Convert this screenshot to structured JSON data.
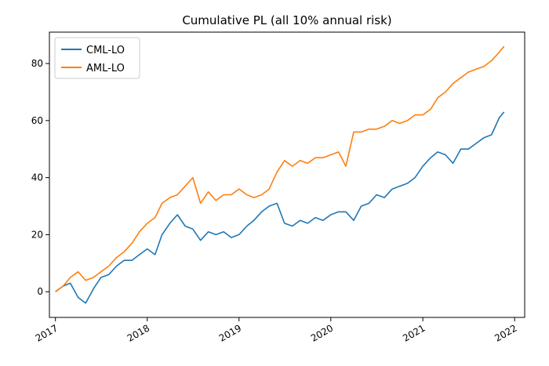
{
  "chart_data": {
    "type": "line",
    "title": "Cumulative PL (all 10% annual risk)",
    "xlabel": "",
    "ylabel": "",
    "x_ticks": [
      "2017",
      "2018",
      "2019",
      "2020",
      "2021",
      "2022"
    ],
    "y_ticks": [
      0,
      20,
      40,
      60,
      80
    ],
    "xlim": [
      "2016-12-08",
      "2022-02-10"
    ],
    "ylim": [
      -9,
      91
    ],
    "legend_position": "top-left",
    "grid": false,
    "x": [
      "2017-01-01",
      "2017-02-01",
      "2017-03-01",
      "2017-04-01",
      "2017-05-01",
      "2017-06-01",
      "2017-07-01",
      "2017-08-01",
      "2017-09-01",
      "2017-10-01",
      "2017-11-01",
      "2017-12-01",
      "2018-01-01",
      "2018-02-01",
      "2018-03-01",
      "2018-04-01",
      "2018-05-01",
      "2018-06-01",
      "2018-07-01",
      "2018-08-01",
      "2018-09-01",
      "2018-10-01",
      "2018-11-01",
      "2018-12-01",
      "2019-01-01",
      "2019-02-01",
      "2019-03-01",
      "2019-04-01",
      "2019-05-01",
      "2019-06-01",
      "2019-07-01",
      "2019-08-01",
      "2019-09-01",
      "2019-10-01",
      "2019-11-01",
      "2019-12-01",
      "2020-01-01",
      "2020-02-01",
      "2020-03-01",
      "2020-04-01",
      "2020-05-01",
      "2020-06-01",
      "2020-07-01",
      "2020-08-01",
      "2020-09-01",
      "2020-10-01",
      "2020-11-01",
      "2020-12-01",
      "2021-01-01",
      "2021-02-01",
      "2021-03-01",
      "2021-04-01",
      "2021-05-01",
      "2021-06-01",
      "2021-07-01",
      "2021-08-01",
      "2021-09-01",
      "2021-10-01",
      "2021-11-01",
      "2021-11-20"
    ],
    "series": [
      {
        "name": "CML-LO",
        "color": "#1f77b4",
        "values": [
          0,
          2,
          3,
          -2,
          -4,
          1,
          5,
          6,
          9,
          11,
          11,
          13,
          15,
          13,
          20,
          24,
          27,
          23,
          22,
          18,
          21,
          20,
          21,
          19,
          20,
          23,
          25,
          28,
          30,
          31,
          24,
          23,
          25,
          24,
          26,
          25,
          27,
          28,
          28,
          25,
          30,
          31,
          34,
          33,
          36,
          37,
          38,
          40,
          44,
          47,
          49,
          48,
          45,
          50,
          50,
          52,
          54,
          55,
          61,
          63
        ]
      },
      {
        "name": "AML-LO",
        "color": "#ff7f0e",
        "values": [
          0,
          2,
          5,
          7,
          4,
          5,
          7,
          9,
          12,
          14,
          17,
          21,
          24,
          26,
          31,
          33,
          34,
          37,
          40,
          31,
          35,
          32,
          34,
          34,
          36,
          34,
          33,
          34,
          36,
          42,
          46,
          44,
          46,
          45,
          47,
          47,
          48,
          49,
          44,
          56,
          56,
          57,
          57,
          58,
          60,
          59,
          60,
          62,
          62,
          64,
          68,
          70,
          73,
          75,
          77,
          78,
          79,
          81,
          84,
          86
        ]
      }
    ]
  }
}
